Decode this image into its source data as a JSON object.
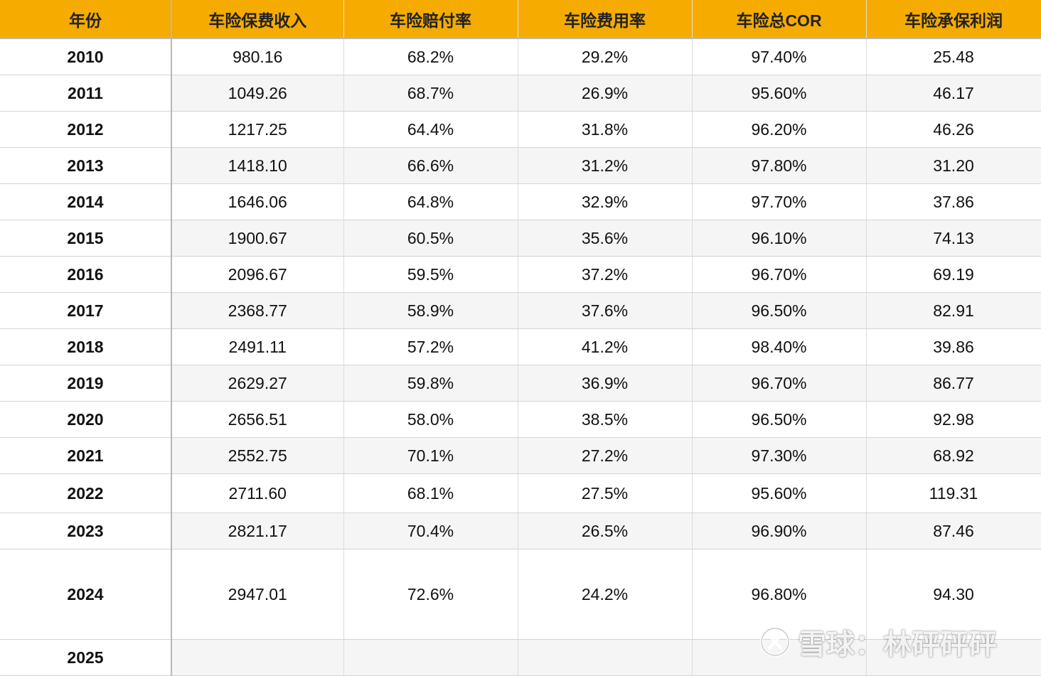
{
  "table": {
    "headers": [
      "年份",
      "车险保费收入",
      "车险赔付率",
      "车险费用率",
      "车险总COR",
      "车险承保利润"
    ],
    "rows": [
      [
        "2010",
        "980.16",
        "68.2%",
        "29.2%",
        "97.40%",
        "25.48"
      ],
      [
        "2011",
        "1049.26",
        "68.7%",
        "26.9%",
        "95.60%",
        "46.17"
      ],
      [
        "2012",
        "1217.25",
        "64.4%",
        "31.8%",
        "96.20%",
        "46.26"
      ],
      [
        "2013",
        "1418.10",
        "66.6%",
        "31.2%",
        "97.80%",
        "31.20"
      ],
      [
        "2014",
        "1646.06",
        "64.8%",
        "32.9%",
        "97.70%",
        "37.86"
      ],
      [
        "2015",
        "1900.67",
        "60.5%",
        "35.6%",
        "96.10%",
        "74.13"
      ],
      [
        "2016",
        "2096.67",
        "59.5%",
        "37.2%",
        "96.70%",
        "69.19"
      ],
      [
        "2017",
        "2368.77",
        "58.9%",
        "37.6%",
        "96.50%",
        "82.91"
      ],
      [
        "2018",
        "2491.11",
        "57.2%",
        "41.2%",
        "98.40%",
        "39.86"
      ],
      [
        "2019",
        "2629.27",
        "59.8%",
        "36.9%",
        "96.70%",
        "86.77"
      ],
      [
        "2020",
        "2656.51",
        "58.0%",
        "38.5%",
        "96.50%",
        "92.98"
      ],
      [
        "2021",
        "2552.75",
        "70.1%",
        "27.2%",
        "97.30%",
        "68.92"
      ],
      [
        "2022",
        "2711.60",
        "68.1%",
        "27.5%",
        "95.60%",
        "119.31"
      ],
      [
        "2023",
        "2821.17",
        "70.4%",
        "26.5%",
        "96.90%",
        "87.46"
      ],
      [
        "2024",
        "2947.01",
        "72.6%",
        "24.2%",
        "96.80%",
        "94.30"
      ],
      [
        "2025",
        "",
        "",
        "",
        "",
        ""
      ]
    ]
  },
  "watermark": {
    "text": "雪球：林砰砰砰",
    "icon": "snowball-logo-icon"
  },
  "colors": {
    "header_bg": "#f5ab00",
    "alt_row_bg": "#f5f5f5"
  }
}
